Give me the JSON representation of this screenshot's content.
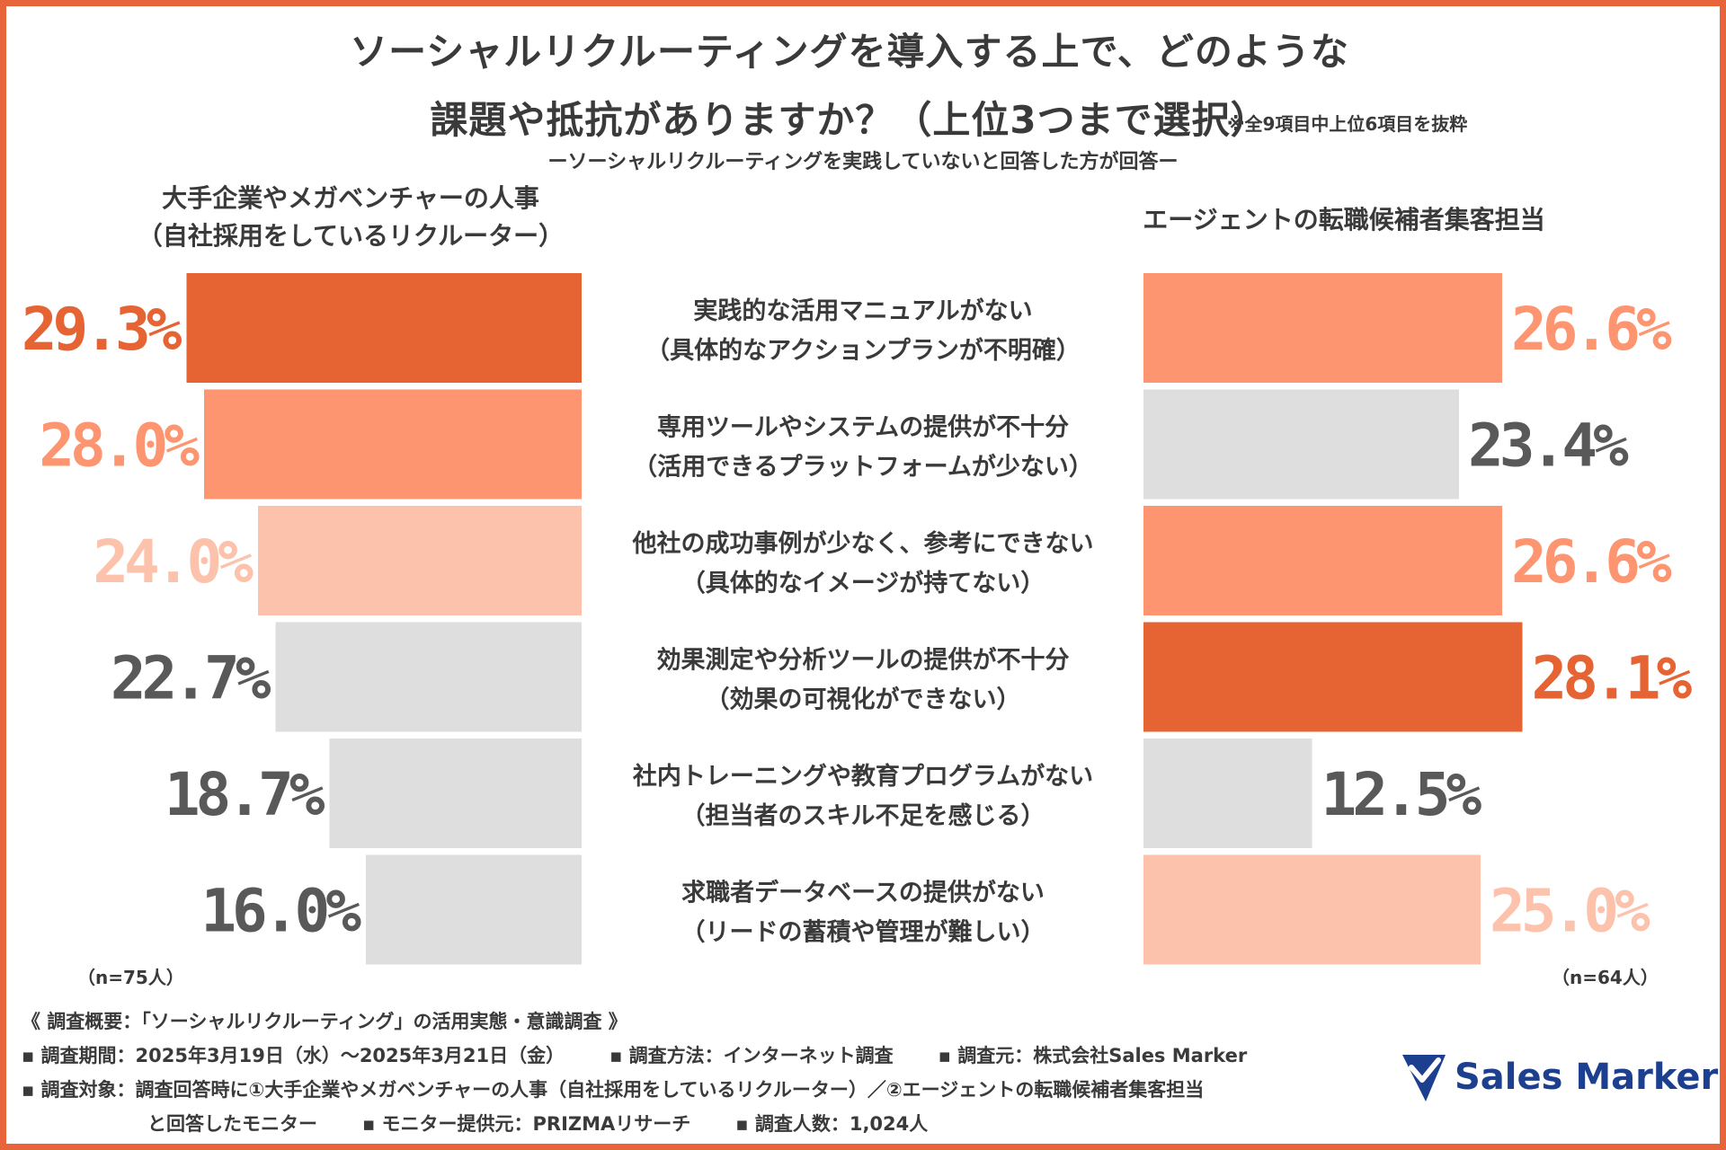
{
  "title_line1": "ソーシャルリクルーティングを導入する上で、どのような",
  "title_line2": "課題や抵抗がありますか？（上位3つまで選択）",
  "note": "※全9項目中上位6項目を抜粋",
  "subtitle": "ーソーシャルリクルーティングを実践していないと回答した方が回答ー",
  "group_left_line1": "大手企業やメガベンチャーの人事",
  "group_left_line2": "（自社採用をしているリクルーター）",
  "group_right": "エージェントの転職候補者集客担当",
  "n_left": "（n=75人）",
  "n_right": "（n=64人）",
  "colors": {
    "rank1": "#e66434",
    "rank2": "#fd9570",
    "rank3": "#fdc2ab",
    "other": "#dedede",
    "other_text": "#595959",
    "frame": "#e8643a"
  },
  "chart_data": {
    "type": "bar",
    "orientation": "horizontal-butterfly",
    "unit": "%",
    "categories": [
      [
        "実践的な活用マニュアルがない",
        "（具体的なアクションプランが不明確）"
      ],
      [
        "専用ツールやシステムの提供が不十分",
        "（活用できるプラットフォームが少ない）"
      ],
      [
        "他社の成功事例が少なく、参考にできない",
        "（具体的なイメージが持てない）"
      ],
      [
        "効果測定や分析ツールの提供が不十分",
        "（効果の可視化ができない）"
      ],
      [
        "社内トレーニングや教育プログラムがない",
        "（担当者のスキル不足を感じる）"
      ],
      [
        "求職者データベースの提供がない",
        "（リードの蓄積や管理が難しい）"
      ]
    ],
    "series": [
      {
        "name": "大手企業やメガベンチャーの人事（自社採用をしているリクルーター）",
        "values": [
          29.3,
          28.0,
          24.0,
          22.7,
          18.7,
          16.0
        ],
        "labels": [
          "29.3%",
          "28.0%",
          "24.0%",
          "22.7%",
          "18.7%",
          "16.0%"
        ],
        "highlight": [
          "rank1",
          "rank2",
          "rank3",
          "other",
          "other",
          "other"
        ]
      },
      {
        "name": "エージェントの転職候補者集客担当",
        "values": [
          26.6,
          23.4,
          26.6,
          28.1,
          12.5,
          25.0
        ],
        "labels": [
          "26.6%",
          "23.4%",
          "26.6%",
          "28.1%",
          "12.5%",
          "25.0%"
        ],
        "highlight": [
          "rank2",
          "other",
          "rank2",
          "rank1",
          "other",
          "rank3"
        ]
      }
    ]
  },
  "footer": {
    "heading": "《 調査概要：「ソーシャルリクルーティング」の活用実態・意識調査 》",
    "period": "▪ 調査期間：2025年3月19日（水）〜2025年3月21日（金）",
    "method": "▪ 調査方法：インターネット調査",
    "source": "▪ 調査元：株式会社Sales Marker",
    "target1": "▪ 調査対象：調査回答時に①大手企業やメガベンチャーの人事（自社採用をしているリクルーター）／②エージェントの転職候補者集客担当",
    "target2": "と回答したモニター",
    "provider": "▪ モニター提供元：PRIZMAリサーチ",
    "count": "▪ 調査人数：1,024人"
  },
  "logo_text": "Sales Marker"
}
